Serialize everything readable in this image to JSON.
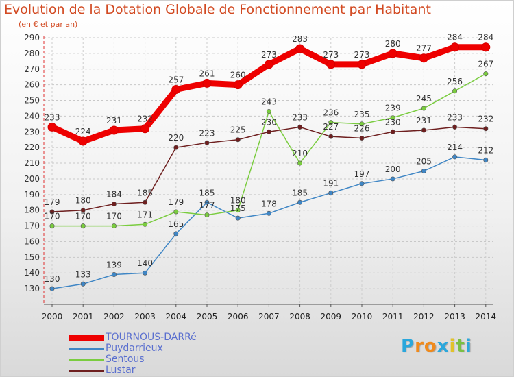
{
  "chart_data": {
    "type": "line",
    "title": "Evolution de la Dotation Globale de Fonctionnement par Habitant",
    "subtitle": "(en € et par an)",
    "xlabel": "",
    "ylabel": "",
    "x": [
      "2000",
      "2001",
      "2002",
      "2003",
      "2004",
      "2005",
      "2006",
      "2007",
      "2008",
      "2009",
      "2010",
      "2011",
      "2012",
      "2013",
      "2014"
    ],
    "ylim": [
      120,
      290
    ],
    "yticks": [
      130,
      140,
      150,
      160,
      170,
      180,
      190,
      200,
      210,
      220,
      230,
      240,
      250,
      260,
      270,
      280,
      290
    ],
    "grid": true,
    "legend_position": "bottom-left",
    "series": [
      {
        "name": "TOURNOUS-DARRé",
        "color": "#ee0000",
        "values": [
          233,
          224,
          231,
          232,
          257,
          261,
          260,
          273,
          283,
          273,
          273,
          280,
          277,
          284,
          284
        ]
      },
      {
        "name": "Puydarrieux",
        "color": "#3f86c5",
        "values": [
          130,
          133,
          139,
          140,
          165,
          185,
          175,
          178,
          185,
          191,
          197,
          200,
          205,
          214,
          212
        ]
      },
      {
        "name": "Sentous",
        "color": "#7acc3f",
        "values": [
          170,
          170,
          170,
          171,
          179,
          177,
          180,
          243,
          210,
          236,
          235,
          239,
          245,
          256,
          267
        ]
      },
      {
        "name": "Lustar",
        "color": "#6e1f1f",
        "values": [
          179,
          180,
          184,
          185,
          220,
          223,
          225,
          230,
          233,
          227,
          226,
          230,
          231,
          233,
          232
        ]
      }
    ]
  },
  "logo": {
    "letters": [
      "P",
      "r",
      "o",
      "x",
      "i",
      "t",
      "i"
    ],
    "colors": [
      "#2aa7dc",
      "#f08a1c",
      "#f08a1c",
      "#2aa7dc",
      "#e2c22a",
      "#7ac043",
      "#2aa7dc"
    ]
  }
}
